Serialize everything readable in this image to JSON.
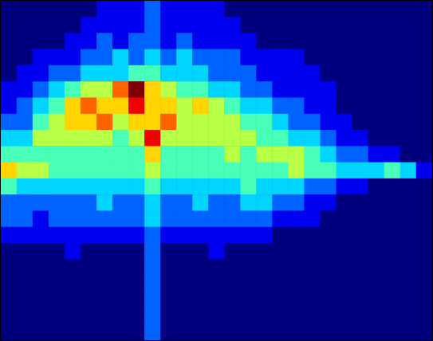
{
  "chart_data": {
    "type": "heatmap",
    "tick_labels": false,
    "zlim": [
      0,
      9
    ],
    "cells": [
      [
        0,
        0,
        0,
        0,
        0,
        0,
        1,
        1,
        1,
        2,
        1,
        1,
        1,
        1,
        0,
        0,
        0,
        0,
        0,
        0,
        0,
        0,
        0,
        0,
        0,
        0,
        0
      ],
      [
        0,
        0,
        0,
        0,
        0,
        1,
        1,
        1,
        1,
        2,
        1,
        1,
        1,
        1,
        1,
        0,
        0,
        0,
        0,
        0,
        0,
        0,
        0,
        0,
        0,
        0,
        0
      ],
      [
        0,
        0,
        0,
        0,
        1,
        1,
        2,
        1,
        2,
        2,
        1,
        2,
        1,
        1,
        1,
        1,
        0,
        0,
        0,
        0,
        0,
        0,
        0,
        0,
        0,
        0,
        0
      ],
      [
        0,
        0,
        1,
        1,
        1,
        2,
        2,
        3,
        2,
        3,
        2,
        3,
        2,
        2,
        2,
        1,
        1,
        1,
        1,
        0,
        0,
        0,
        0,
        0,
        0,
        0,
        0
      ],
      [
        0,
        1,
        1,
        2,
        2,
        3,
        3,
        3,
        4,
        4,
        3,
        3,
        3,
        2,
        2,
        2,
        1,
        1,
        1,
        1,
        0,
        0,
        0,
        0,
        0,
        0,
        0
      ],
      [
        1,
        1,
        2,
        3,
        4,
        5,
        5,
        7,
        9,
        6,
        5,
        4,
        4,
        3,
        3,
        2,
        2,
        1,
        1,
        1,
        1,
        0,
        0,
        0,
        0,
        0,
        0
      ],
      [
        1,
        2,
        3,
        4,
        6,
        7,
        6,
        6,
        8,
        6,
        6,
        5,
        6,
        5,
        4,
        3,
        3,
        2,
        2,
        1,
        1,
        0,
        0,
        0,
        0,
        0,
        0
      ],
      [
        2,
        2,
        4,
        5,
        6,
        6,
        7,
        5,
        6,
        6,
        7,
        5,
        5,
        5,
        5,
        4,
        4,
        3,
        2,
        2,
        1,
        1,
        0,
        0,
        0,
        0,
        0
      ],
      [
        3,
        3,
        5,
        5,
        5,
        5,
        5,
        4,
        5,
        8,
        5,
        5,
        5,
        5,
        5,
        5,
        4,
        4,
        3,
        3,
        2,
        1,
        1,
        0,
        0,
        0,
        0
      ],
      [
        4,
        4,
        4,
        4,
        4,
        4,
        4,
        4,
        4,
        6,
        4,
        4,
        4,
        4,
        5,
        4,
        5,
        5,
        5,
        4,
        3,
        2,
        2,
        1,
        1,
        0,
        0
      ],
      [
        6,
        5,
        5,
        4,
        4,
        4,
        4,
        4,
        4,
        5,
        4,
        4,
        4,
        4,
        4,
        4,
        4,
        4,
        5,
        4,
        4,
        3,
        3,
        3,
        4,
        3,
        1
      ],
      [
        4,
        3,
        3,
        3,
        3,
        3,
        3,
        3,
        3,
        4,
        3,
        3,
        3,
        3,
        3,
        4,
        3,
        3,
        3,
        2,
        2,
        1,
        1,
        0,
        0,
        0,
        0
      ],
      [
        2,
        2,
        2,
        2,
        2,
        2,
        3,
        2,
        2,
        3,
        2,
        2,
        3,
        2,
        2,
        3,
        3,
        2,
        2,
        1,
        1,
        0,
        0,
        0,
        0,
        0,
        0
      ],
      [
        2,
        2,
        1,
        2,
        2,
        2,
        2,
        2,
        2,
        3,
        2,
        2,
        2,
        2,
        2,
        2,
        2,
        1,
        1,
        1,
        0,
        0,
        0,
        0,
        0,
        0,
        0
      ],
      [
        1,
        1,
        1,
        1,
        1,
        1,
        1,
        1,
        1,
        2,
        1,
        1,
        1,
        1,
        1,
        1,
        1,
        0,
        0,
        0,
        0,
        0,
        0,
        0,
        0,
        0,
        0
      ],
      [
        0,
        0,
        0,
        0,
        1,
        0,
        0,
        0,
        0,
        2,
        0,
        0,
        0,
        1,
        0,
        0,
        0,
        0,
        0,
        0,
        0,
        0,
        0,
        0,
        0,
        0,
        0
      ],
      [
        0,
        0,
        0,
        0,
        0,
        0,
        0,
        0,
        0,
        2,
        0,
        0,
        0,
        0,
        0,
        0,
        0,
        0,
        0,
        0,
        0,
        0,
        0,
        0,
        0,
        0,
        0
      ],
      [
        0,
        0,
        0,
        0,
        0,
        0,
        0,
        0,
        0,
        2,
        0,
        0,
        0,
        0,
        0,
        0,
        0,
        0,
        0,
        0,
        0,
        0,
        0,
        0,
        0,
        0,
        0
      ],
      [
        0,
        0,
        0,
        0,
        0,
        0,
        0,
        0,
        0,
        2,
        0,
        0,
        0,
        0,
        0,
        0,
        0,
        0,
        0,
        0,
        0,
        0,
        0,
        0,
        0,
        0,
        0
      ],
      [
        0,
        0,
        0,
        0,
        0,
        0,
        0,
        0,
        0,
        2,
        0,
        0,
        0,
        0,
        0,
        0,
        0,
        0,
        0,
        0,
        0,
        0,
        0,
        0,
        0,
        0,
        0
      ],
      [
        0,
        0,
        0,
        0,
        0,
        0,
        0,
        0,
        0,
        2,
        0,
        0,
        0,
        0,
        0,
        0,
        0,
        0,
        0,
        0,
        0,
        0,
        0,
        0,
        0,
        0,
        0
      ]
    ]
  }
}
